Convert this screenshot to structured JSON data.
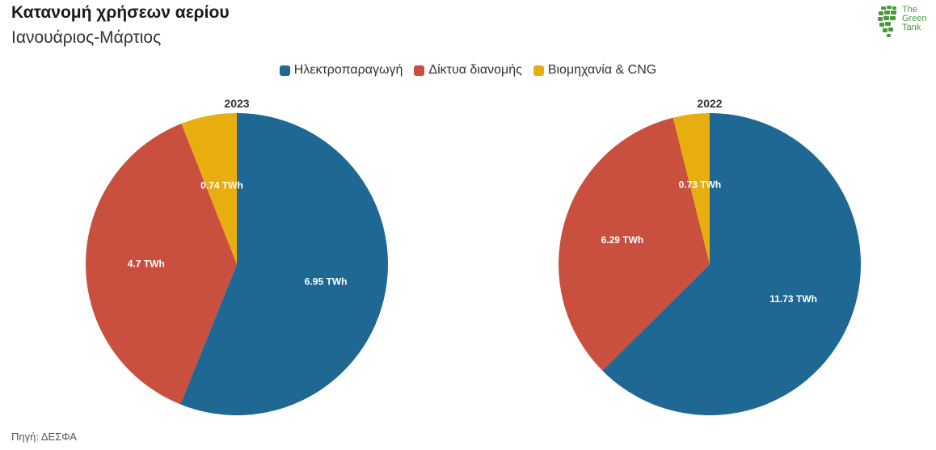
{
  "header": {
    "title": "Κατανομή χρήσεων αερίου",
    "subtitle": "Ιανουάριος-Μάρτιος"
  },
  "logo": {
    "lines": [
      "The",
      "Green",
      "Tank"
    ],
    "color": "#4a9a3c"
  },
  "legend": [
    {
      "label": "Ηλεκτροπαραγωγή",
      "color": "#1f6894"
    },
    {
      "label": "Δίκτυα διανομής",
      "color": "#c9503f"
    },
    {
      "label": "Βιομηχανία & CNG",
      "color": "#e8ad0e"
    }
  ],
  "chart_data": [
    {
      "type": "pie",
      "title": "2023",
      "unit": "TWh",
      "slices": [
        {
          "name": "Ηλεκτροπαραγωγή",
          "value": 6.95,
          "label": "6.95 TWh",
          "color": "#1f6894"
        },
        {
          "name": "Δίκτυα διανομής",
          "value": 4.7,
          "label": "4.7 TWh",
          "color": "#c9503f"
        },
        {
          "name": "Βιομηχανία & CNG",
          "value": 0.74,
          "label": "0.74 TWh",
          "color": "#e8ad0e"
        }
      ]
    },
    {
      "type": "pie",
      "title": "2022",
      "unit": "TWh",
      "slices": [
        {
          "name": "Ηλεκτροπαραγωγή",
          "value": 11.73,
          "label": "11.73 TWh",
          "color": "#1f6894"
        },
        {
          "name": "Δίκτυα διανομής",
          "value": 6.29,
          "label": "6.29 TWh",
          "color": "#c9503f"
        },
        {
          "name": "Βιομηχανία & CNG",
          "value": 0.73,
          "label": "0.73 TWh",
          "color": "#e8ad0e"
        }
      ]
    }
  ],
  "footer": {
    "source": "Πηγή: ΔΕΣΦΑ"
  }
}
